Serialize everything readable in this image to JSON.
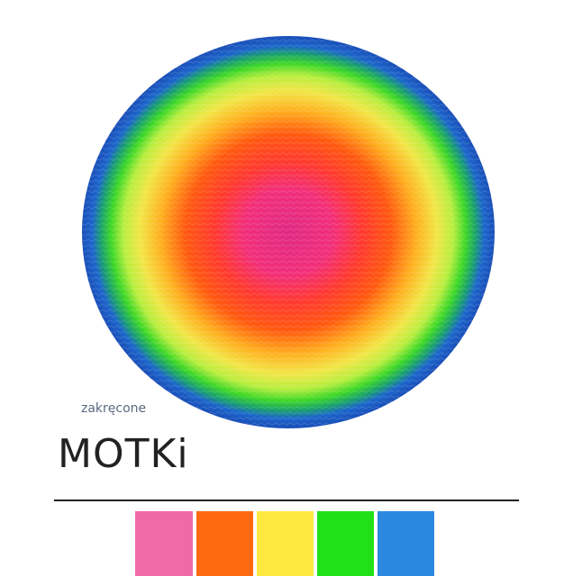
{
  "logo": {
    "tagline": "zakręcone",
    "name": "MOTKi"
  }
}
